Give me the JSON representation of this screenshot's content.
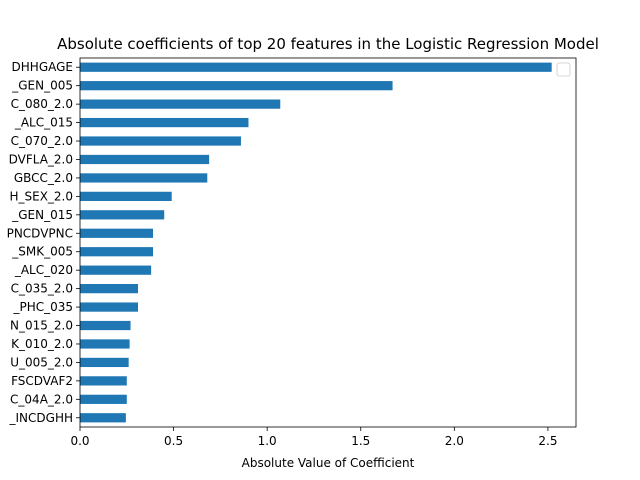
{
  "chart_data": {
    "type": "bar",
    "orientation": "horizontal",
    "title": "Absolute coefficients of top 20 features in the Logistic Regression Model",
    "xlabel": "Absolute Value of Coefficient",
    "ylabel": "",
    "xlim": [
      0,
      2.65
    ],
    "xticks": [
      "0.0",
      "0.5",
      "1.0",
      "1.5",
      "2.0",
      "2.5"
    ],
    "categories": [
      "DHHGAGE",
      "_GEN_005",
      "C_080_2.0",
      "_ALC_015",
      "C_070_2.0",
      "DVFLA_2.0",
      "GBCC_2.0",
      "H_SEX_2.0",
      "_GEN_015",
      "PNCDVPNC",
      "_SMK_005",
      "_ALC_020",
      "C_035_2.0",
      "_PHC_035",
      "N_015_2.0",
      "K_010_2.0",
      "U_005_2.0",
      "FSCDVAF2",
      "C_04A_2.0",
      "_INCDGHH"
    ],
    "values": [
      2.52,
      1.67,
      1.07,
      0.9,
      0.86,
      0.69,
      0.68,
      0.49,
      0.45,
      0.39,
      0.39,
      0.38,
      0.31,
      0.31,
      0.27,
      0.265,
      0.26,
      0.25,
      0.25,
      0.245
    ],
    "bar_color": "#1f77b4",
    "grid": false,
    "legend": "top-right (empty)"
  }
}
